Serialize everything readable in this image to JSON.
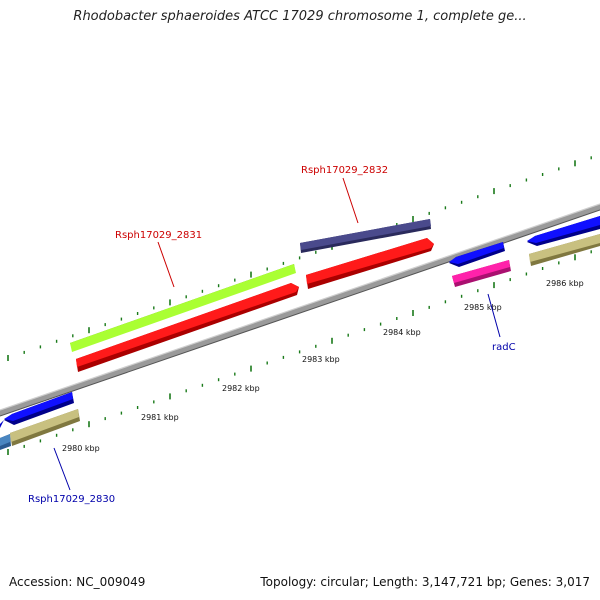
{
  "title": "Rhodobacter sphaeroides ATCC 17029 chromosome 1, complete ge...",
  "footer": {
    "accession": "Accession: NC_009049",
    "summary": "Topology: circular; Length: 3,147,721 bp; Genes: 3,017"
  },
  "scale_labels": [
    "2980 kbp",
    "2981 kbp",
    "2982 kbp",
    "2983 kbp",
    "2984 kbp",
    "2985 kbp",
    "2986 kbp"
  ],
  "gene_labels": [
    {
      "text": "Rsph17029_2830",
      "color": "#0000aa"
    },
    {
      "text": "Rsph17029_2831",
      "color": "#cc0000"
    },
    {
      "text": "Rsph17029_2832",
      "color": "#cc0000"
    },
    {
      "text": "radC",
      "color": "#0000aa"
    }
  ],
  "colors": {
    "backbone": "#8a8a8a",
    "tick": "#1a7a1a",
    "forward_cds": "#ff0000",
    "reverse_cds": "#0000ee",
    "lime_feature": "#aaff33",
    "purple_feature": "#4a4a8c",
    "khaki_feature": "#c8c080",
    "magenta_feature": "#ff22aa",
    "steel_feature": "#4a86c0"
  }
}
